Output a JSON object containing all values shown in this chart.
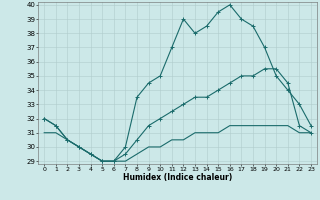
{
  "xlabel": "Humidex (Indice chaleur)",
  "bg_color": "#cce8e8",
  "grid_color": "#b0cccc",
  "line_color": "#1a6b6b",
  "xlim": [
    -0.5,
    23.5
  ],
  "ylim": [
    28.8,
    40.2
  ],
  "xticks": [
    0,
    1,
    2,
    3,
    4,
    5,
    6,
    7,
    8,
    9,
    10,
    11,
    12,
    13,
    14,
    15,
    16,
    17,
    18,
    19,
    20,
    21,
    22,
    23
  ],
  "yticks": [
    29,
    30,
    31,
    32,
    33,
    34,
    35,
    36,
    37,
    38,
    39,
    40
  ],
  "line1_x": [
    0,
    1,
    2,
    3,
    4,
    5,
    6,
    7,
    8,
    9,
    10,
    11,
    12,
    13,
    14,
    15,
    16,
    17,
    18,
    19,
    20,
    21,
    22,
    23
  ],
  "line1_y": [
    32.0,
    31.5,
    30.5,
    30.0,
    29.5,
    29.0,
    29.0,
    30.0,
    33.5,
    34.5,
    35.0,
    37.0,
    39.0,
    38.0,
    38.5,
    39.5,
    40.0,
    39.0,
    38.5,
    37.0,
    35.0,
    34.0,
    33.0,
    31.5
  ],
  "line2_x": [
    0,
    1,
    2,
    3,
    4,
    5,
    6,
    7,
    8,
    9,
    10,
    11,
    12,
    13,
    14,
    15,
    16,
    17,
    18,
    19,
    20,
    21,
    22,
    23
  ],
  "line2_y": [
    31.0,
    31.0,
    30.5,
    30.0,
    29.5,
    29.0,
    29.0,
    29.0,
    29.5,
    30.0,
    30.0,
    30.5,
    30.5,
    31.0,
    31.0,
    31.0,
    31.5,
    31.5,
    31.5,
    31.5,
    31.5,
    31.5,
    31.0,
    31.0
  ],
  "line3_x": [
    0,
    1,
    2,
    3,
    4,
    5,
    6,
    7,
    8,
    9,
    10,
    11,
    12,
    13,
    14,
    15,
    16,
    17,
    18,
    19,
    20,
    21,
    22,
    23
  ],
  "line3_y": [
    32.0,
    31.5,
    30.5,
    30.0,
    29.5,
    29.0,
    29.0,
    29.5,
    30.5,
    31.5,
    32.0,
    32.5,
    33.0,
    33.5,
    33.5,
    34.0,
    34.5,
    35.0,
    35.0,
    35.5,
    35.5,
    34.5,
    31.5,
    31.0
  ]
}
